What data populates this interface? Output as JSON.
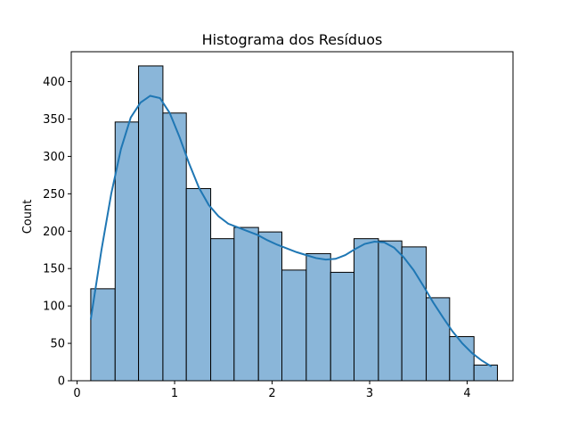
{
  "chart_data": {
    "type": "bar",
    "title": "Histograma dos Resíduos",
    "xlabel": "",
    "ylabel": "Count",
    "xlim": [
      -0.06,
      4.47
    ],
    "ylim": [
      0,
      440
    ],
    "xticks": [
      0,
      1,
      2,
      3,
      4
    ],
    "yticks": [
      0,
      50,
      100,
      150,
      200,
      250,
      300,
      350,
      400
    ],
    "grid": false,
    "bins": [
      {
        "x0": 0.14,
        "x1": 0.39,
        "count": 123
      },
      {
        "x0": 0.39,
        "x1": 0.63,
        "count": 346
      },
      {
        "x0": 0.63,
        "x1": 0.88,
        "count": 421
      },
      {
        "x0": 0.88,
        "x1": 1.12,
        "count": 358
      },
      {
        "x0": 1.12,
        "x1": 1.37,
        "count": 257
      },
      {
        "x0": 1.37,
        "x1": 1.61,
        "count": 190
      },
      {
        "x0": 1.61,
        "x1": 1.86,
        "count": 205
      },
      {
        "x0": 1.86,
        "x1": 2.1,
        "count": 199
      },
      {
        "x0": 2.1,
        "x1": 2.35,
        "count": 148
      },
      {
        "x0": 2.35,
        "x1": 2.6,
        "count": 170
      },
      {
        "x0": 2.6,
        "x1": 2.84,
        "count": 145
      },
      {
        "x0": 2.84,
        "x1": 3.09,
        "count": 190
      },
      {
        "x0": 3.09,
        "x1": 3.33,
        "count": 187
      },
      {
        "x0": 3.33,
        "x1": 3.58,
        "count": 179
      },
      {
        "x0": 3.58,
        "x1": 3.82,
        "count": 111
      },
      {
        "x0": 3.82,
        "x1": 4.07,
        "count": 59
      },
      {
        "x0": 4.07,
        "x1": 4.31,
        "count": 21
      }
    ],
    "kde": {
      "x": [
        0.14,
        0.25,
        0.35,
        0.45,
        0.55,
        0.65,
        0.75,
        0.85,
        0.95,
        1.05,
        1.15,
        1.25,
        1.35,
        1.45,
        1.55,
        1.65,
        1.75,
        1.85,
        1.95,
        2.05,
        2.15,
        2.25,
        2.35,
        2.45,
        2.55,
        2.65,
        2.75,
        2.85,
        2.95,
        3.05,
        3.15,
        3.25,
        3.35,
        3.45,
        3.55,
        3.65,
        3.75,
        3.85,
        3.95,
        4.05,
        4.15,
        4.25
      ],
      "y": [
        82,
        175,
        250,
        310,
        352,
        372,
        381,
        378,
        358,
        326,
        290,
        258,
        235,
        220,
        210,
        205,
        200,
        195,
        188,
        182,
        177,
        172,
        168,
        164,
        162,
        163,
        168,
        176,
        183,
        186,
        185,
        178,
        165,
        148,
        127,
        105,
        85,
        66,
        50,
        37,
        27,
        19
      ]
    },
    "colors": {
      "bar_fill": "#8ab6d9",
      "bar_edge": "#000000",
      "kde_line": "#1f77b4"
    }
  }
}
